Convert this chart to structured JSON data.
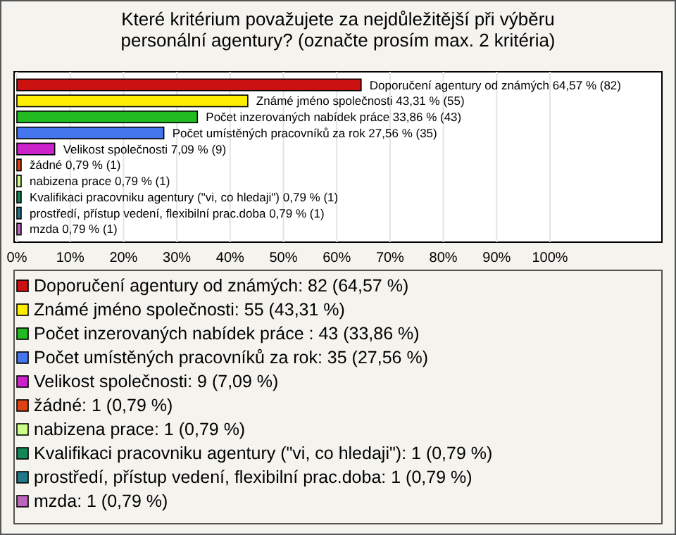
{
  "chart_data": {
    "type": "bar",
    "orientation": "horizontal",
    "stacked": true,
    "title": "Které kritérium považujete za nejdůležitější při výběru personální agentury? (označte prosím max. 2 kritéria)",
    "categories": [
      null,
      null,
      null,
      null,
      null,
      null,
      null,
      null,
      null,
      null
    ],
    "series": [
      {
        "name": "Doporučení agentury od známých: 82 (64,57 %)",
        "color": "#cc1111",
        "values": [
          64.57,
          null,
          null,
          null,
          null,
          null,
          null,
          null,
          null,
          null
        ],
        "value_labels": [
          "Doporučení agentury od známých 64,57 % (82)",
          null,
          null,
          null,
          null,
          null,
          null,
          null,
          null,
          null
        ]
      },
      {
        "name": "Známé jméno společnosti: 55 (43,31 %)",
        "color": "#ffee00",
        "values": [
          null,
          43.31,
          null,
          null,
          null,
          null,
          null,
          null,
          null,
          null
        ],
        "value_labels": [
          null,
          "Známé jméno společnosti 43,31 % (55)",
          null,
          null,
          null,
          null,
          null,
          null,
          null,
          null
        ]
      },
      {
        "name": "Počet inzerovaných nabídek práce : 43 (33,86 %)",
        "color": "#22bb22",
        "values": [
          null,
          null,
          33.86,
          null,
          null,
          null,
          null,
          null,
          null,
          null
        ],
        "value_labels": [
          null,
          null,
          "Počet inzerovaných nabídek práce  33,86 % (43)",
          null,
          null,
          null,
          null,
          null,
          null,
          null
        ]
      },
      {
        "name": "Počet umístěných pracovníků za rok: 35 (27,56 %)",
        "color": "#4477ee",
        "values": [
          null,
          null,
          null,
          27.56,
          null,
          null,
          null,
          null,
          null,
          null
        ],
        "value_labels": [
          null,
          null,
          null,
          "Počet umístěných pracovníků za rok 27,56 % (35)",
          null,
          null,
          null,
          null,
          null,
          null
        ]
      },
      {
        "name": "Velikost společnosti: 9 (7,09 %)",
        "color": "#cc22cc",
        "values": [
          null,
          null,
          null,
          null,
          7.09,
          null,
          null,
          null,
          null,
          null
        ],
        "value_labels": [
          null,
          null,
          null,
          null,
          "Velikost společnosti 7,09 % (9)",
          null,
          null,
          null,
          null,
          null
        ]
      },
      {
        "name": "žádné: 1 (0,79 %)",
        "color": "#dd4411",
        "values": [
          null,
          null,
          null,
          null,
          null,
          0.79,
          null,
          null,
          null,
          null
        ],
        "value_labels": [
          null,
          null,
          null,
          null,
          null,
          "žádné 0,79 % (1)",
          null,
          null,
          null,
          null
        ]
      },
      {
        "name": "nabizena prace: 1 (0,79 %)",
        "color": "#ccff88",
        "values": [
          null,
          null,
          null,
          null,
          null,
          null,
          0.79,
          null,
          null,
          null
        ],
        "value_labels": [
          null,
          null,
          null,
          null,
          null,
          null,
          "nabizena prace 0,79 % (1)",
          null,
          null,
          null
        ]
      },
      {
        "name": "Kvalifikaci pracovniku agentury (\"vi, co hledaji\"): 1 (0,79 %)",
        "color": "#118855",
        "values": [
          null,
          null,
          null,
          null,
          null,
          null,
          null,
          0.79,
          null,
          null
        ],
        "value_labels": [
          null,
          null,
          null,
          null,
          null,
          null,
          null,
          "Kvalifikaci pracovniku agentury (\"vi, co hledaji\") 0,79 % (1)",
          null,
          null
        ]
      },
      {
        "name": "prostředí, přístup vedení, flexibilní prac.doba: 1 (0,79 %)",
        "color": "#227788",
        "values": [
          null,
          null,
          null,
          null,
          null,
          null,
          null,
          null,
          0.79,
          null
        ],
        "value_labels": [
          null,
          null,
          null,
          null,
          null,
          null,
          null,
          null,
          "prostředí, přístup vedení, flexibilní prac.doba 0,79 % (1)",
          null
        ]
      },
      {
        "name": "mzda: 1 (0,79 %)",
        "color": "#bb66bb",
        "values": [
          null,
          null,
          null,
          null,
          null,
          null,
          null,
          null,
          null,
          0.79
        ],
        "value_labels": [
          null,
          null,
          null,
          null,
          null,
          null,
          null,
          null,
          null,
          "mzda 0,79 % (1)"
        ]
      }
    ],
    "xlim": [
      0,
      121
    ],
    "xticks": [
      {
        "value": 0,
        "label": "0%"
      },
      {
        "value": 10,
        "label": "10%"
      },
      {
        "value": 20,
        "label": "20%"
      },
      {
        "value": 30,
        "label": "30%"
      },
      {
        "value": 40,
        "label": "40%"
      },
      {
        "value": 50,
        "label": "50%"
      },
      {
        "value": 60,
        "label": "60%"
      },
      {
        "value": 70,
        "label": "70%"
      },
      {
        "value": 80,
        "label": "80%"
      },
      {
        "value": 90,
        "label": "90%"
      },
      {
        "value": 100,
        "label": "100%"
      }
    ],
    "grid": "x",
    "legend": "bottom"
  }
}
